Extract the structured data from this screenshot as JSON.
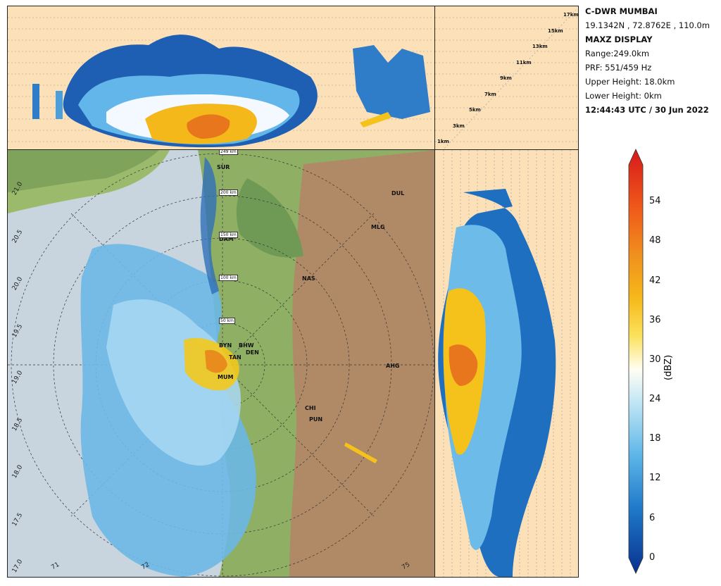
{
  "info": {
    "station": "C-DWR MUMBAI",
    "coords": "19.1342N , 72.8762E , 110.0m",
    "product": "MAXZ DISPLAY",
    "range": "Range:249.0km",
    "prf": "PRF: 551/459 Hz",
    "upper_height": "Upper Height: 18.0km",
    "lower_height": "Lower Height: 0km",
    "time": "12:44:43 UTC / 30 Jun 2022"
  },
  "height_labels": [
    "17km",
    "15km",
    "13km",
    "11km",
    "9km",
    "7km",
    "5km",
    "3km",
    "1km"
  ],
  "colorbar": {
    "unit": "(dBZ)",
    "ticks": [
      "54",
      "48",
      "42",
      "36",
      "30",
      "24",
      "18",
      "12",
      "6",
      "0"
    ],
    "colors": [
      "#e41a1c",
      "#f05a1a",
      "#f0901e",
      "#f6b81a",
      "#fbe25c",
      "#fffef0",
      "#bfe5f5",
      "#5eb6e8",
      "#1f78c8",
      "#08318f"
    ]
  },
  "map": {
    "cities": [
      "SUR",
      "DUL",
      "MLG",
      "DAM",
      "NAS",
      "BYN",
      "BHW",
      "DEN",
      "TAN",
      "MUM",
      "AHG",
      "CHI",
      "PUN"
    ],
    "ring_labels": [
      "200 km",
      "150 km",
      "100 km",
      "50 km",
      "249 km"
    ],
    "lat_labels": [
      "21.0",
      "20.5",
      "20.0",
      "19.5",
      "19.0",
      "18.5",
      "18.0",
      "17.5",
      "17.0"
    ],
    "lon_labels": [
      "71",
      "72",
      "75"
    ]
  }
}
